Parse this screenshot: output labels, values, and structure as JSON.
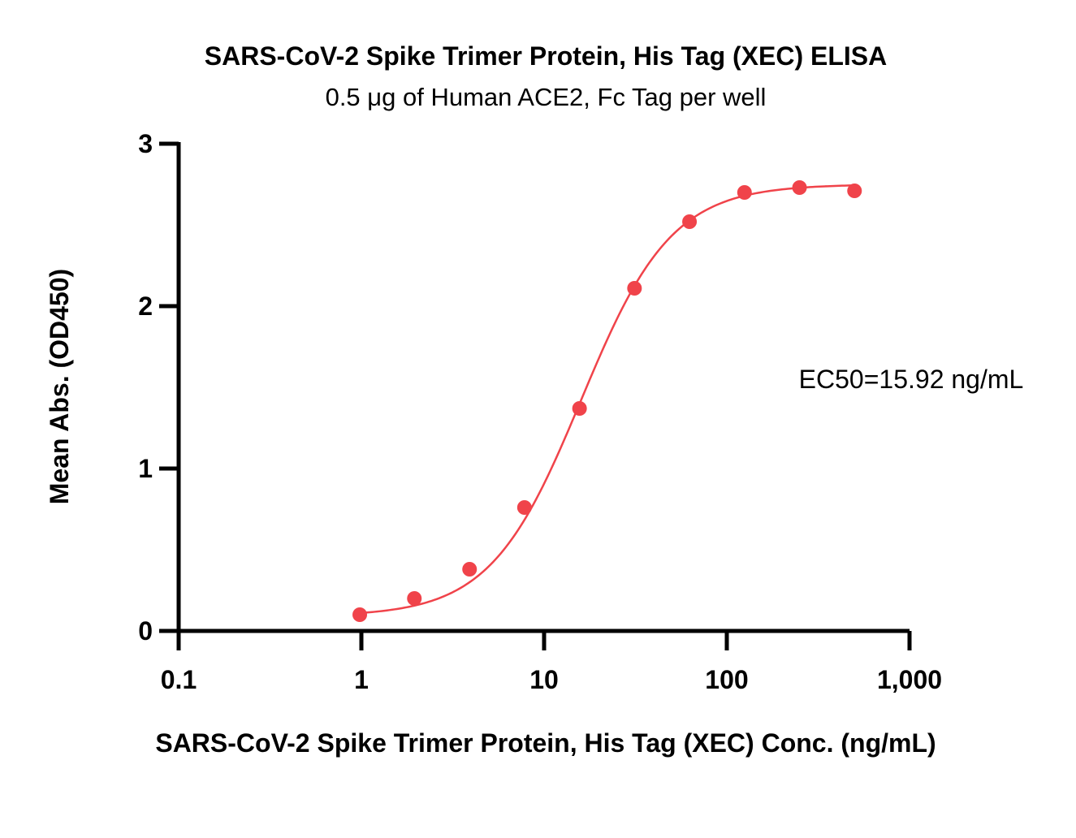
{
  "chart_data": {
    "type": "scatter",
    "title": "SARS-CoV-2 Spike Trimer Protein, His Tag (XEC) ELISA",
    "subtitle": "0.5 μg of Human ACE2, Fc Tag per well",
    "xlabel": "SARS-CoV-2 Spike Trimer Protein, His Tag (XEC) Conc. (ng/mL)",
    "ylabel": "Mean Abs. (OD450)",
    "xscale": "log",
    "xlim": [
      0.1,
      1000
    ],
    "ylim": [
      0,
      3
    ],
    "x_ticks": [
      {
        "value": 0.1,
        "label": "0.1"
      },
      {
        "value": 1,
        "label": "1"
      },
      {
        "value": 10,
        "label": "10"
      },
      {
        "value": 100,
        "label": "100"
      },
      {
        "value": 1000,
        "label": "1,000"
      }
    ],
    "y_ticks": [
      {
        "value": 0,
        "label": "0"
      },
      {
        "value": 1,
        "label": "1"
      },
      {
        "value": 2,
        "label": "2"
      },
      {
        "value": 3,
        "label": "3"
      }
    ],
    "series": [
      {
        "color": "#f0434a",
        "points": [
          {
            "x": 0.98,
            "y": 0.1
          },
          {
            "x": 1.95,
            "y": 0.2
          },
          {
            "x": 3.91,
            "y": 0.38
          },
          {
            "x": 7.81,
            "y": 0.76
          },
          {
            "x": 15.63,
            "y": 1.37
          },
          {
            "x": 31.25,
            "y": 2.11
          },
          {
            "x": 62.5,
            "y": 2.52
          },
          {
            "x": 125,
            "y": 2.7
          },
          {
            "x": 250,
            "y": 2.73
          },
          {
            "x": 500,
            "y": 2.71
          }
        ],
        "fit": {
          "bottom": 0.09,
          "top": 2.75,
          "ec50": 15.92,
          "hill": 1.75,
          "x_range": [
            0.98,
            500
          ]
        }
      }
    ],
    "annotation": "EC50=15.92 ng/mL",
    "grid": false,
    "legend": "none"
  }
}
